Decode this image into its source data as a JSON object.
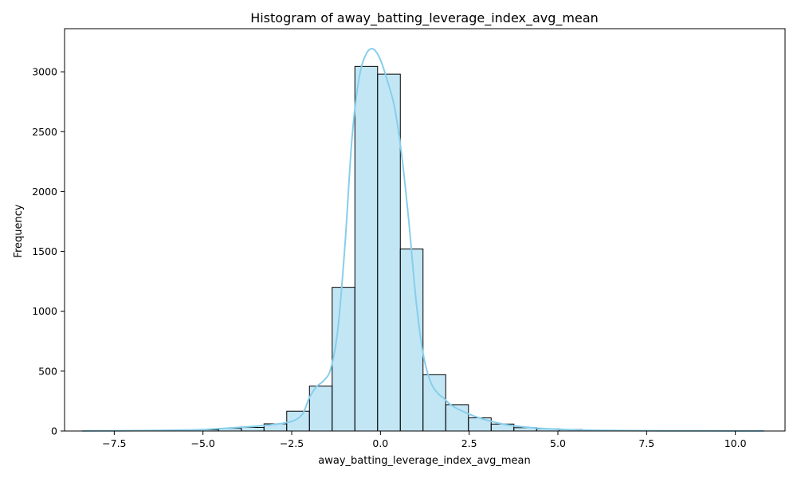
{
  "chart_data": {
    "type": "bar",
    "subtype": "histogram_with_kde",
    "title": "Histogram of away_batting_leverage_index_avg_mean",
    "xlabel": "away_batting_leverage_index_avg_mean",
    "ylabel": "Frequency",
    "xlim": [
      -8.9,
      11.4
    ],
    "ylim": [
      0,
      3360
    ],
    "x_ticks": [
      -7.5,
      -5.0,
      -2.5,
      0.0,
      2.5,
      5.0,
      7.5,
      10.0
    ],
    "x_tick_labels": [
      "−7.5",
      "−5.0",
      "−2.5",
      "0.0",
      "2.5",
      "5.0",
      "7.5",
      "10.0"
    ],
    "y_ticks": [
      0,
      500,
      1000,
      1500,
      2000,
      2500,
      3000
    ],
    "y_tick_labels": [
      "0",
      "500",
      "1000",
      "1500",
      "2000",
      "2500",
      "3000"
    ],
    "grid": false,
    "bar_fill": "#87ceeb",
    "bar_fill_opacity": 0.5,
    "bar_edge": "#000000",
    "kde_color": "#87ceeb",
    "bins": [
      {
        "x0": -8.4,
        "x1": -7.76,
        "count": 1
      },
      {
        "x0": -7.76,
        "x1": -7.12,
        "count": 2
      },
      {
        "x0": -7.12,
        "x1": -6.48,
        "count": 3
      },
      {
        "x0": -6.48,
        "x1": -5.84,
        "count": 3
      },
      {
        "x0": -5.84,
        "x1": -5.2,
        "count": 6
      },
      {
        "x0": -5.2,
        "x1": -4.56,
        "count": 10
      },
      {
        "x0": -4.56,
        "x1": -3.92,
        "count": 22
      },
      {
        "x0": -3.92,
        "x1": -3.28,
        "count": 30
      },
      {
        "x0": -3.28,
        "x1": -2.64,
        "count": 60
      },
      {
        "x0": -2.64,
        "x1": -2.0,
        "count": 165
      },
      {
        "x0": -2.0,
        "x1": -1.36,
        "count": 375
      },
      {
        "x0": -1.36,
        "x1": -0.72,
        "count": 1200
      },
      {
        "x0": -0.72,
        "x1": -0.08,
        "count": 3045
      },
      {
        "x0": -0.08,
        "x1": 0.56,
        "count": 2980
      },
      {
        "x0": 0.56,
        "x1": 1.2,
        "count": 1520
      },
      {
        "x0": 1.2,
        "x1": 1.84,
        "count": 470
      },
      {
        "x0": 1.84,
        "x1": 2.48,
        "count": 220
      },
      {
        "x0": 2.48,
        "x1": 3.12,
        "count": 110
      },
      {
        "x0": 3.12,
        "x1": 3.76,
        "count": 58
      },
      {
        "x0": 3.76,
        "x1": 4.4,
        "count": 28
      },
      {
        "x0": 4.4,
        "x1": 5.04,
        "count": 18
      },
      {
        "x0": 5.04,
        "x1": 5.68,
        "count": 12
      },
      {
        "x0": 5.68,
        "x1": 6.32,
        "count": 5
      },
      {
        "x0": 6.32,
        "x1": 6.96,
        "count": 3
      },
      {
        "x0": 6.96,
        "x1": 7.6,
        "count": 2
      },
      {
        "x0": 7.6,
        "x1": 8.24,
        "count": 2
      },
      {
        "x0": 8.24,
        "x1": 8.88,
        "count": 2
      },
      {
        "x0": 8.88,
        "x1": 9.52,
        "count": 1
      },
      {
        "x0": 9.52,
        "x1": 10.16,
        "count": 1
      },
      {
        "x0": 10.16,
        "x1": 10.8,
        "count": 1
      }
    ],
    "kde": {
      "x": [
        -8.4,
        -7.5,
        -6.5,
        -5.5,
        -5.0,
        -4.5,
        -4.0,
        -3.5,
        -3.0,
        -2.5,
        -2.2,
        -2.0,
        -1.8,
        -1.6,
        -1.4,
        -1.2,
        -1.0,
        -0.8,
        -0.6,
        -0.4,
        -0.2,
        0.0,
        0.2,
        0.4,
        0.6,
        0.8,
        1.0,
        1.2,
        1.4,
        1.6,
        1.8,
        2.0,
        2.5,
        3.0,
        3.5,
        4.0,
        4.5,
        5.0,
        5.5,
        6.0,
        7.0,
        8.0,
        9.0,
        10.0,
        10.8
      ],
      "y": [
        1,
        2,
        4,
        8,
        12,
        20,
        30,
        40,
        55,
        80,
        140,
        280,
        370,
        420,
        520,
        850,
        1550,
        2450,
        2950,
        3150,
        3190,
        3100,
        2920,
        2700,
        2300,
        1750,
        1100,
        650,
        420,
        320,
        270,
        215,
        140,
        90,
        55,
        35,
        22,
        15,
        9,
        6,
        3,
        2,
        2,
        1,
        1
      ]
    }
  }
}
